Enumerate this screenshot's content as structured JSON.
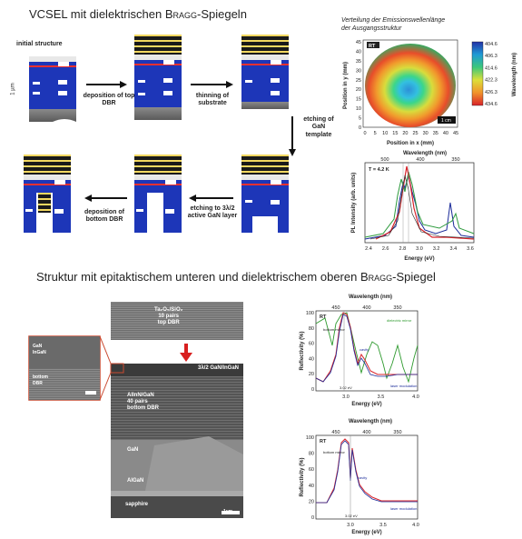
{
  "titles": {
    "top_main": "VCSEL mit dielektrischen ",
    "top_bragg": "Bragg",
    "top_suffix": "-Spiegeln",
    "bottom_main": "Struktur mit epitaktischem unteren und dielektrischem oberen ",
    "bottom_bragg": "Bragg",
    "bottom_suffix": "-Spiegel"
  },
  "process": {
    "initial": "initial structure",
    "step1": "deposition of top DBR",
    "step2": "thinning of substrate",
    "step3": "etching of GaN template",
    "step4": "etching to 3λ/2 active GaN layer",
    "step5": "deposition of bottom DBR",
    "scale": "1 µm"
  },
  "map": {
    "title_line1": "Verteilung der Emissionswellenlänge",
    "title_line2": "der Ausgangsstruktur",
    "xlabel": "Position in x (mm)",
    "ylabel": "Position in y (mm)",
    "colorbar_label": "Wavelength (nm)",
    "tag": "RT",
    "scale": "1 cm",
    "xticks": [
      "0",
      "5",
      "10",
      "15",
      "20",
      "25",
      "30",
      "35",
      "40",
      "45"
    ],
    "yticks": [
      "0",
      "5",
      "10",
      "15",
      "20",
      "25",
      "30",
      "35",
      "40",
      "45"
    ],
    "cbar_ticks": [
      "404.6",
      "406.3",
      "414.6",
      "422.3",
      "426.3",
      "434.6"
    ]
  },
  "pl": {
    "top_label": "Wavelength (nm)",
    "xlabel": "Energy (eV)",
    "ylabel": "PL Intensity (arb. units)",
    "temp": "T = 4.2 K",
    "top_ticks": [
      "500",
      "400",
      "350"
    ],
    "xticks": [
      "2.4",
      "2.6",
      "2.8",
      "3.0",
      "3.2",
      "3.4",
      "3.6"
    ]
  },
  "sem": {
    "top_label_line1": "Ta₂O₅/SiO₂",
    "top_label_line2": "10 pairs",
    "top_label_line3": "top DBR",
    "inset_l1": "GaN",
    "inset_l2": "InGaN",
    "inset_l3": "bottom",
    "inset_l4": "DBR",
    "active": "3λ/2 GaN/InGaN",
    "dbr_l1": "AlInN/GaN",
    "dbr_l2": "40 pairs",
    "dbr_l3": "bottom DBR",
    "gan": "GaN",
    "algan": "AlGaN",
    "sapphire": "sapphire",
    "scale": "1µm"
  },
  "refl1": {
    "top_label": "Wavelength (nm)",
    "xlabel": "Energy (eV)",
    "ylabel": "Reflectivity (%)",
    "top_ticks": [
      "450",
      "400",
      "350"
    ],
    "xticks": [
      "3.0",
      "3.5",
      "4.0"
    ],
    "yticks": [
      "0",
      "20",
      "40",
      "60",
      "80",
      "100"
    ],
    "tag": "RT",
    "l_bottom": "bottom mirror",
    "l_top": "dielectric mirror",
    "l_cavity": "cavity",
    "l_laser": "laser modulation",
    "line_e": "3.02 eV"
  },
  "refl2": {
    "top_label": "Wavelength (nm)",
    "xlabel": "Energy (eV)",
    "ylabel": "Reflectivity (%)",
    "top_ticks": [
      "450",
      "400",
      "350"
    ],
    "xticks": [
      "3.0",
      "3.5",
      "4.0"
    ],
    "yticks": [
      "0",
      "20",
      "40",
      "60",
      "80",
      "100"
    ],
    "tag": "RT",
    "l_bottom": "bottom mirror",
    "l_cavity": "cavity",
    "l_laser": "laser modulation",
    "line_e": "3.02 eV"
  }
}
